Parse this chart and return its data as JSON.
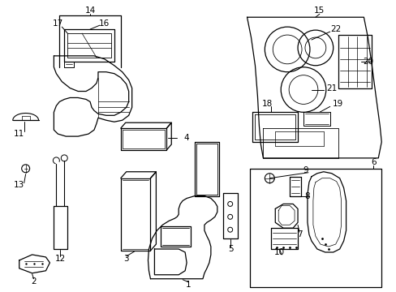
{
  "bg_color": "#ffffff",
  "line_color": "#000000",
  "figsize": [
    4.89,
    3.6
  ],
  "dpi": 100,
  "font_size": 7.5
}
